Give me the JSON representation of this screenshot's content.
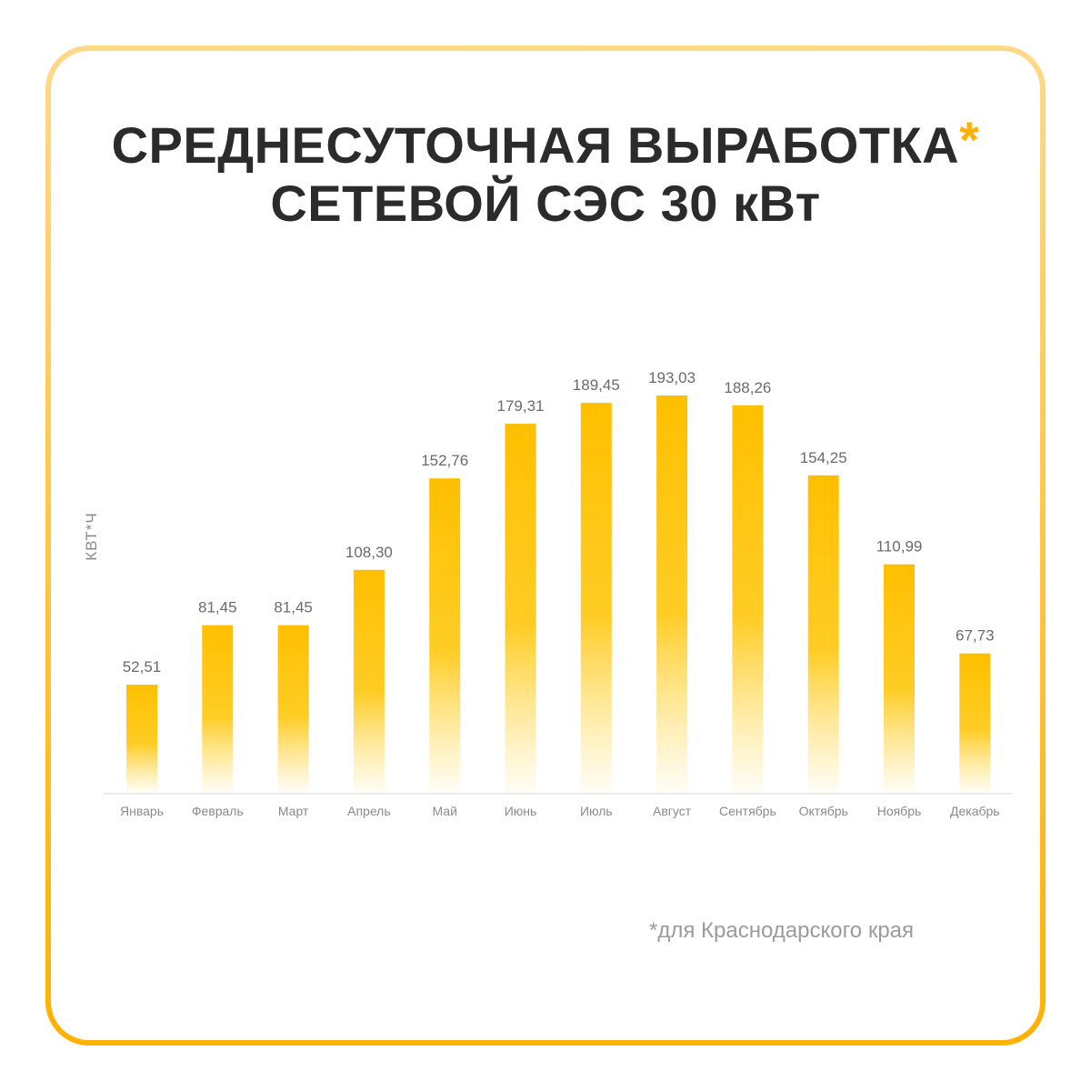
{
  "title": {
    "line1": "СРЕДНЕСУТОЧНАЯ ВЫРАБОТКА",
    "asterisk": "*",
    "line2": "СЕТЕВОЙ СЭС 30 кВт"
  },
  "footnote": "*для Краснодарского края",
  "colors": {
    "bar": "#ffbf00",
    "frame_top": "#ffd98a",
    "frame_bottom": "#ffb100",
    "title_text": "#2b2b2b",
    "accent": "#ffb000"
  },
  "chart_data": {
    "type": "bar",
    "ylabel": "КВТ*Ч",
    "xlabel": "",
    "ylim": [
      0,
      193.03
    ],
    "grid": false,
    "categories": [
      "Январь",
      "Февраль",
      "Март",
      "Апрель",
      "Май",
      "Июнь",
      "Июль",
      "Август",
      "Сентябрь",
      "Октябрь",
      "Ноябрь",
      "Декабрь"
    ],
    "values": [
      52.51,
      81.45,
      81.45,
      108.3,
      152.76,
      179.31,
      189.45,
      193.03,
      188.26,
      154.25,
      110.99,
      67.73
    ],
    "value_labels": [
      "52,51",
      "81,45",
      "81,45",
      "108,30",
      "152,76",
      "179,31",
      "189,45",
      "193,03",
      "188,26",
      "154,25",
      "110,99",
      "67,73"
    ]
  }
}
